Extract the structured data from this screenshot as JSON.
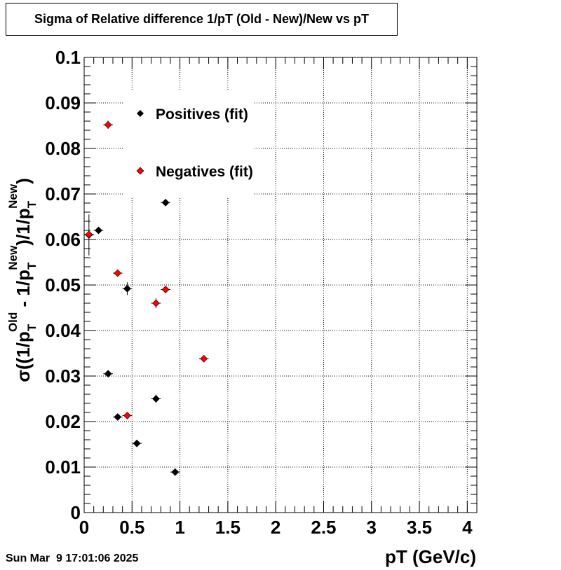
{
  "timestamp": "Sun Mar  9 17:01:06 2025",
  "chart_data": {
    "type": "scatter",
    "title": "Sigma of Relative difference 1/pT (Old - New)/New vs pT",
    "xlabel": "pT (GeV/c)",
    "ylabel_parts": {
      "sigma": "σ((1/p",
      "T": "T",
      "Old": "Old",
      "mid": " - 1/p",
      "New": "New",
      "close": ")/1/p",
      "end": ")"
    },
    "xlim": [
      0,
      4.1
    ],
    "ylim": [
      0,
      0.1
    ],
    "x_ticks": [
      "0",
      "0.5",
      "1",
      "1.5",
      "2",
      "2.5",
      "3",
      "3.5",
      "4"
    ],
    "y_ticks": [
      "0",
      "0.01",
      "0.02",
      "0.03",
      "0.04",
      "0.05",
      "0.06",
      "0.07",
      "0.08",
      "0.09",
      "0.1"
    ],
    "grid": true,
    "legend_position": "top-left",
    "series": [
      {
        "name": "Positives (fit)",
        "color": "#000000",
        "points": [
          {
            "x": 0.05,
            "y": 0.061,
            "err": 0.0045
          },
          {
            "x": 0.15,
            "y": 0.062,
            "err": 0.0005
          },
          {
            "x": 0.25,
            "y": 0.0305,
            "err": 0.0006
          },
          {
            "x": 0.35,
            "y": 0.021,
            "err": 0.0006
          },
          {
            "x": 0.45,
            "y": 0.0492,
            "err": 0.0014
          },
          {
            "x": 0.55,
            "y": 0.0152,
            "err": 0.0005
          },
          {
            "x": 0.75,
            "y": 0.025,
            "err": 0.0009
          },
          {
            "x": 0.85,
            "y": 0.0681,
            "err": 0.0006
          },
          {
            "x": 0.95,
            "y": 0.0089,
            "err": 0.0005
          }
        ]
      },
      {
        "name": "Negatives (fit)",
        "color": "#ff0000",
        "points": [
          {
            "x": 0.05,
            "y": 0.0611,
            "err": 0.0008
          },
          {
            "x": 0.25,
            "y": 0.0852,
            "err": 0.0009
          },
          {
            "x": 0.35,
            "y": 0.0526,
            "err": 0.0006
          },
          {
            "x": 0.45,
            "y": 0.0213,
            "err": 0.0005
          },
          {
            "x": 0.75,
            "y": 0.046,
            "err": 0.0011
          },
          {
            "x": 0.85,
            "y": 0.049,
            "err": 0.0005
          },
          {
            "x": 1.25,
            "y": 0.0338,
            "err": 0.0005
          }
        ]
      }
    ]
  }
}
